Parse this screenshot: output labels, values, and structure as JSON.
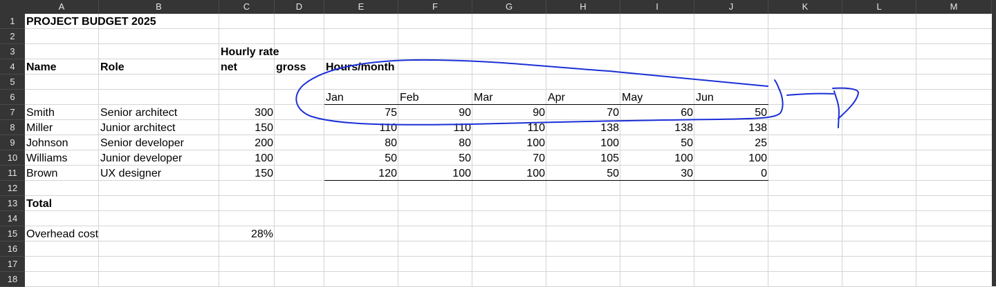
{
  "columns": [
    "A",
    "B",
    "C",
    "D",
    "E",
    "F",
    "G",
    "H",
    "I",
    "J",
    "K",
    "L",
    "M"
  ],
  "rows": [
    "1",
    "2",
    "3",
    "4",
    "5",
    "6",
    "7",
    "8",
    "9",
    "10",
    "11",
    "12",
    "13",
    "14",
    "15",
    "16",
    "17",
    "18"
  ],
  "sheet": {
    "title": "PROJECT BUDGET 2025",
    "hourly_rate_label": "Hourly rate",
    "headers": {
      "name": "Name",
      "role": "Role",
      "net": "net",
      "gross": "gross",
      "hours": "Hours/month"
    },
    "months": [
      "Jan",
      "Feb",
      "Mar",
      "Apr",
      "May",
      "Jun"
    ],
    "people": [
      {
        "name": "Smith",
        "role": "Senior architect",
        "rate": "300",
        "hours": [
          "75",
          "90",
          "90",
          "70",
          "60",
          "50"
        ]
      },
      {
        "name": "Miller",
        "role": "Junior architect",
        "rate": "150",
        "hours": [
          "110",
          "110",
          "110",
          "138",
          "138",
          "138"
        ]
      },
      {
        "name": "Johnson",
        "role": "Senior developer",
        "rate": "200",
        "hours": [
          "80",
          "80",
          "100",
          "100",
          "50",
          "25"
        ]
      },
      {
        "name": "Williams",
        "role": "Junior developer",
        "rate": "100",
        "hours": [
          "50",
          "50",
          "70",
          "105",
          "100",
          "100"
        ]
      },
      {
        "name": "Brown",
        "role": "UX designer",
        "rate": "150",
        "hours": [
          "120",
          "100",
          "100",
          "50",
          "30",
          "0"
        ]
      }
    ],
    "total_label": "Total",
    "overhead_label": "Overhead cost",
    "overhead_value": "28%"
  },
  "annotation": {
    "color": "#1a2fd6"
  }
}
